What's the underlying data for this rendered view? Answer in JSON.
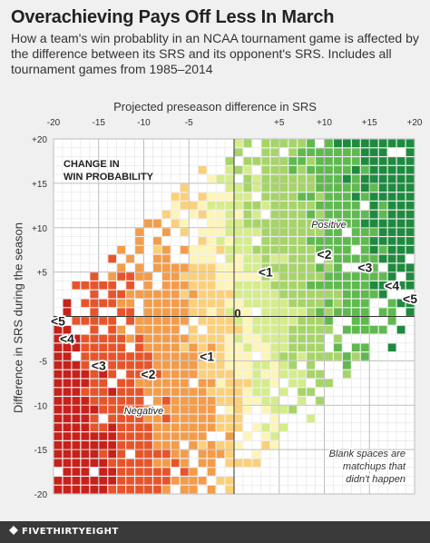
{
  "header": {
    "title": "Overachieving Pays Off Less In March",
    "subtitle": "How a team's win probablity in an NCAA tournament game is affected by the difference between its SRS and its opponent's SRS. Includes all tournament games from 1985–2014"
  },
  "footer": {
    "brand": "FIVETHIRTYEIGHT"
  },
  "chart_data": {
    "type": "heatmap",
    "xlabel": "Projected preseason difference in SRS",
    "ylabel": "Difference in SRS during the season",
    "xlim": [
      -20,
      20
    ],
    "ylim": [
      -20,
      20
    ],
    "cell_size": 1,
    "x_ticks": [
      "-20",
      "-15",
      "-10",
      "-5",
      "+5",
      "+10",
      "+15",
      "+20"
    ],
    "y_ticks": [
      "+20",
      "+15",
      "+10",
      "+5",
      "-5",
      "-10",
      "-15",
      "-20"
    ],
    "zero_label": "0",
    "grid": true,
    "legend_title": "CHANGE IN WIN PROBABILITY",
    "colors": {
      "very_negative": "#c8201b",
      "negative_2": "#e8542a",
      "negative_1": "#f39c4a",
      "slightly_negative": "#fbd07a",
      "neutral": "#fdf5b8",
      "slightly_positive": "#d5ec8a",
      "positive_1": "#a6d468",
      "positive_2": "#5fb94f",
      "very_positive": "#1e8a3e"
    },
    "annotations": [
      {
        "text": "Positive",
        "x": 10.5,
        "y": 10.5,
        "style": "italic"
      },
      {
        "text": "Negative",
        "x": -10,
        "y": -10.5,
        "style": "italic"
      },
      {
        "text": "<1",
        "x": 3.5,
        "y": 5,
        "style": "bold"
      },
      {
        "text": "<2",
        "x": 10,
        "y": 7,
        "style": "bold"
      },
      {
        "text": "<3",
        "x": 14.5,
        "y": 5.5,
        "style": "bold"
      },
      {
        "text": "<4",
        "x": 17.5,
        "y": 3.5,
        "style": "bold"
      },
      {
        "text": "<5",
        "x": 19.5,
        "y": 2,
        "style": "bold"
      },
      {
        "text": "<1",
        "x": -3,
        "y": -4.5,
        "style": "bold"
      },
      {
        "text": "<2",
        "x": -9.5,
        "y": -6.5,
        "style": "bold"
      },
      {
        "text": "<3",
        "x": -15,
        "y": -5.5,
        "style": "bold"
      },
      {
        "text": "<4",
        "x": -18.5,
        "y": -2.5,
        "style": "bold"
      },
      {
        "text": "<5",
        "x": -19.5,
        "y": -0.5,
        "style": "bold"
      }
    ],
    "note": "Blank spaces are matchups that didn't happen"
  }
}
